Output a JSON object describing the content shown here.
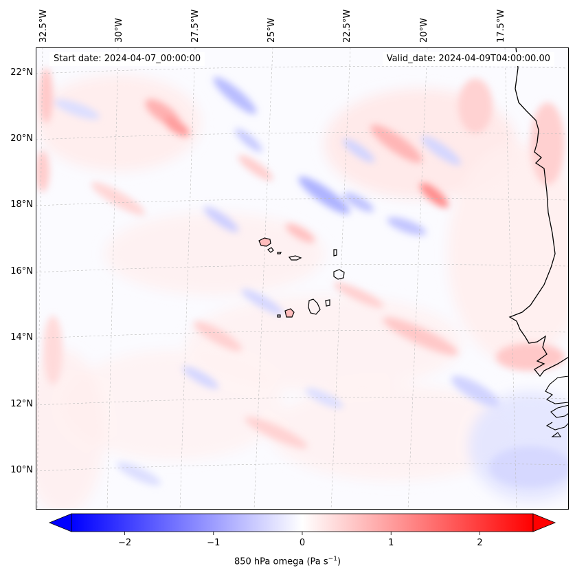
{
  "map": {
    "start_date": "Start date: 2024-04-07_00:00:00",
    "valid_date": "Valid_date: 2024-04-09T04:00:00.00",
    "lon_labels": [
      "32.5°W",
      "30°W",
      "27.5°W",
      "25°W",
      "22.5°W",
      "20°W",
      "17.5°W"
    ],
    "lat_labels": [
      "22°N",
      "20°N",
      "18°N",
      "16°N",
      "14°N",
      "12°N",
      "10°N"
    ],
    "colors": {
      "positive": "#ff0000",
      "negative": "#0000ff",
      "neutral": "#ffffff",
      "coastline": "#000000",
      "gridline": "#bbbbbb"
    }
  },
  "colorbar": {
    "ticks": [
      "−2",
      "−1",
      "0",
      "1",
      "2"
    ],
    "tick_values": [
      -2,
      -1,
      0,
      1,
      2
    ],
    "min": -2.6,
    "max": 2.6,
    "label_prefix": "850 hPa omega (Pa s",
    "label_exp": "−1",
    "label_suffix": ")"
  }
}
